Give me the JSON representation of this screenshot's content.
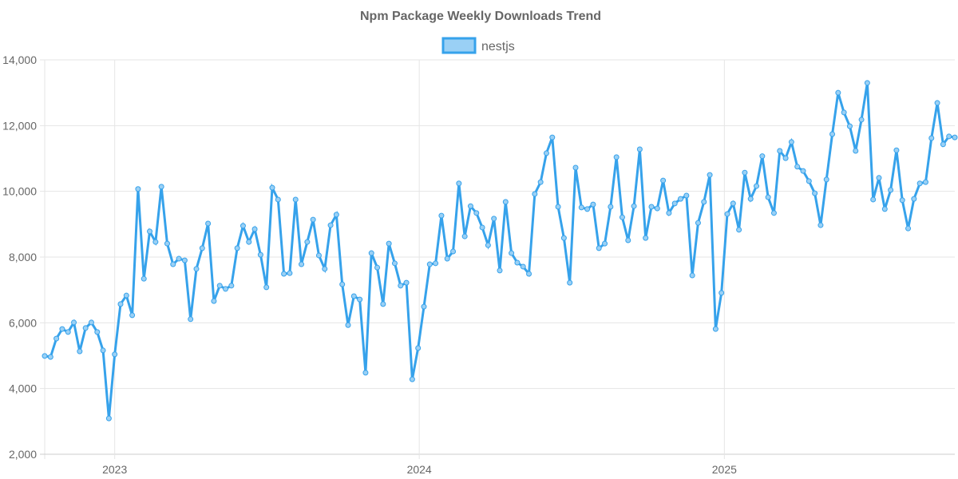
{
  "chart_data": {
    "type": "line",
    "title": "Npm Package Weekly Downloads Trend",
    "xlabel": "",
    "ylabel": "",
    "ylim": [
      2000,
      14000
    ],
    "yticks": [
      "2,000",
      "4,000",
      "6,000",
      "8,000",
      "10,000",
      "12,000",
      "14,000"
    ],
    "ytick_values": [
      2000,
      4000,
      6000,
      8000,
      10000,
      12000,
      14000
    ],
    "x_unit": "week index",
    "xlim": [
      0,
      156
    ],
    "xticks": [
      {
        "label": "2023",
        "week": 12.0
      },
      {
        "label": "2024",
        "week": 64.2
      },
      {
        "label": "2025",
        "week": 116.5
      }
    ],
    "grid": true,
    "legend_position": "top-center",
    "colors": {
      "line": "#36a2eb",
      "fill": "#9ad0f5",
      "grid": "#e5e5e5",
      "text": "#666666"
    },
    "series": [
      {
        "name": "nestjs",
        "values": [
          4990,
          4960,
          5520,
          5810,
          5720,
          6010,
          5130,
          5840,
          6010,
          5720,
          5160,
          3090,
          5040,
          6570,
          6830,
          6230,
          10070,
          7340,
          8780,
          8460,
          10140,
          8410,
          7780,
          7950,
          7900,
          6110,
          7640,
          8270,
          9020,
          6660,
          7130,
          7030,
          7130,
          8270,
          8950,
          8460,
          8850,
          8070,
          7080,
          10110,
          9750,
          7490,
          7510,
          9750,
          7780,
          8460,
          9140,
          8050,
          7640,
          8970,
          9290,
          7170,
          5930,
          6810,
          6710,
          4480,
          8120,
          7680,
          6570,
          8410,
          7810,
          7130,
          7220,
          4280,
          5230,
          6490,
          7780,
          7810,
          9260,
          7950,
          8170,
          10240,
          8630,
          9550,
          9340,
          8900,
          8360,
          9170,
          7590,
          9680,
          8120,
          7830,
          7710,
          7490,
          9920,
          10280,
          11160,
          11640,
          9530,
          8580,
          7220,
          10720,
          9510,
          9460,
          9600,
          8270,
          8410,
          9530,
          11040,
          9210,
          8510,
          9550,
          11280,
          8580,
          9530,
          9480,
          10330,
          9340,
          9630,
          9770,
          9870,
          7440,
          9040,
          9680,
          10500,
          5810,
          6910,
          9310,
          9630,
          8830,
          10570,
          9770,
          10160,
          11070,
          9820,
          9340,
          11230,
          11010,
          11500,
          10750,
          10620,
          10310,
          9940,
          8970,
          10360,
          11740,
          13000,
          12400,
          11980,
          11230,
          12180,
          13300,
          9750,
          10410,
          9460,
          10040,
          11250,
          9730,
          8870,
          9770,
          10240,
          10280,
          11620,
          12690,
          11430,
          11670,
          11640
        ]
      }
    ]
  }
}
